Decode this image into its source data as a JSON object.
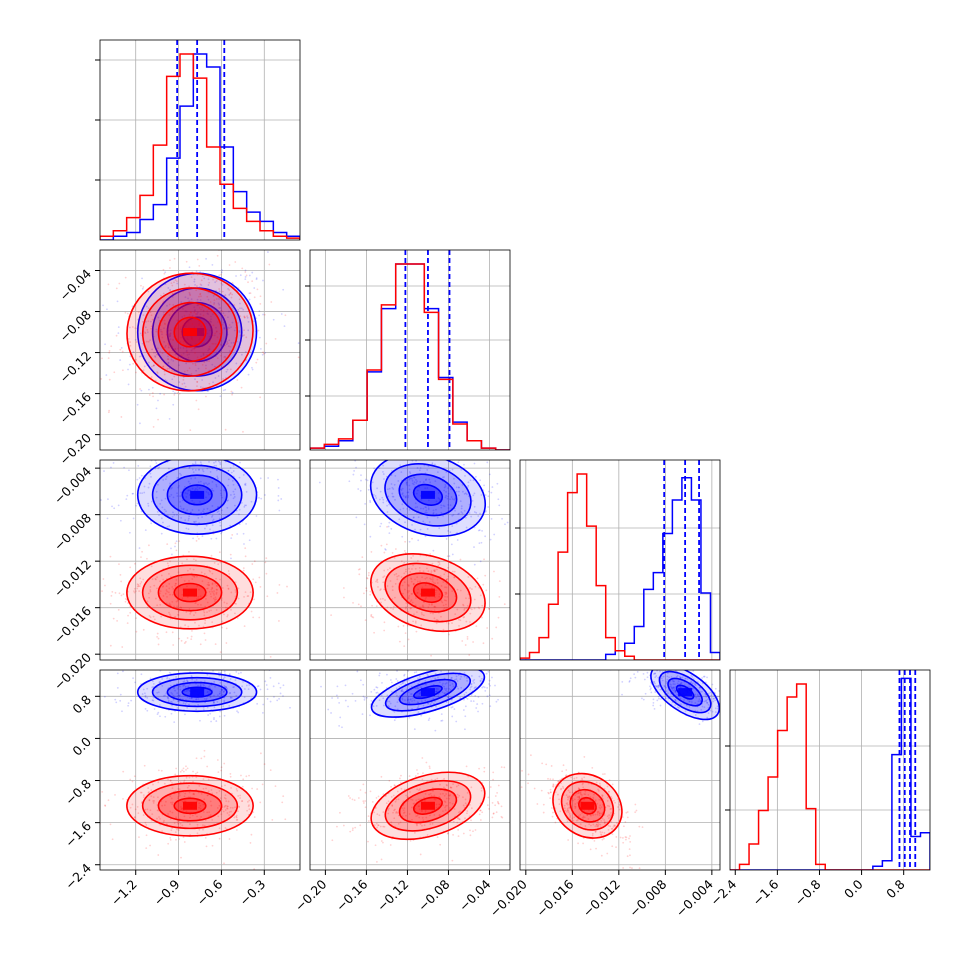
{
  "colors": {
    "series_a": "#0000ff",
    "series_b": "#ff0000",
    "grid": "#b0b0b0",
    "frame": "#000000"
  },
  "chart_data": {
    "type": "corner",
    "parameters": [
      {
        "range": [
          -1.45,
          -0.05
        ],
        "ticks": [
          -1.2,
          -0.9,
          -0.6,
          -0.3
        ],
        "tick_labels": [
          "−1.2",
          "−0.9",
          "−0.6",
          "−0.3"
        ]
      },
      {
        "range": [
          -0.215,
          -0.02
        ],
        "ticks": [
          -0.2,
          -0.16,
          -0.12,
          -0.08,
          -0.04
        ],
        "tick_labels": [
          "−0.20",
          "−0.16",
          "−0.12",
          "−0.08",
          "−0.04"
        ]
      },
      {
        "range": [
          -0.0205,
          -0.0033
        ],
        "ticks": [
          -0.02,
          -0.016,
          -0.012,
          -0.008,
          -0.004
        ],
        "tick_labels": [
          "−0.020",
          "−0.016",
          "−0.012",
          "−0.008",
          "−0.004"
        ]
      },
      {
        "range": [
          -2.5,
          1.3
        ],
        "ticks": [
          -2.4,
          -1.6,
          -0.8,
          0.0,
          0.8
        ],
        "tick_labels": [
          "−2.4",
          "−1.6",
          "−0.8",
          "0.0",
          "0.8"
        ]
      }
    ],
    "diag_yticks": [
      [
        0.3,
        0.6,
        0.9
      ],
      [
        0.27,
        0.55,
        0.82
      ],
      [
        0.33,
        0.66
      ],
      [
        0.3,
        0.62
      ]
    ],
    "series": [
      {
        "color": "#0000ff",
        "means": [
          -0.77,
          -0.1,
          -0.0063,
          0.88
        ],
        "sds": [
          0.16,
          0.022,
          0.0013,
          0.14
        ],
        "quantile_lines": [
          [
            -0.91,
            -0.77,
            -0.58
          ],
          [
            -0.122,
            -0.1,
            -0.079
          ],
          [
            -0.0081,
            -0.0063,
            -0.0051
          ],
          [
            0.72,
            0.82,
            0.92,
            1.02
          ]
        ],
        "histograms": [
          [
            0,
            0.02,
            0.04,
            0.11,
            0.19,
            0.44,
            0.72,
            1.0,
            0.93,
            0.5,
            0.26,
            0.15,
            0.1,
            0.04,
            0.02
          ],
          [
            0.01,
            0.02,
            0.05,
            0.16,
            0.42,
            0.76,
            1.0,
            1.0,
            0.76,
            0.39,
            0.15,
            0.05,
            0.01,
            0.0
          ],
          [
            0,
            0,
            0,
            0,
            0,
            0,
            0,
            0,
            0,
            0.03,
            0.05,
            0.09,
            0.18,
            0.38,
            0.47,
            0.68,
            0.86,
            0.98,
            0.86,
            0.36,
            0.04
          ],
          [
            0,
            0,
            0,
            0,
            0,
            0,
            0,
            0,
            0,
            0,
            0,
            0,
            0,
            0,
            0,
            0.02,
            0.05,
            0.62,
            1.03,
            0.18,
            0.2
          ]
        ]
      },
      {
        "color": "#ff0000",
        "means": [
          -0.82,
          -0.1,
          -0.0147,
          -1.28
        ],
        "sds": [
          0.17,
          0.022,
          0.0012,
          0.22
        ],
        "quantile_lines": [],
        "histograms": [
          [
            0.02,
            0.05,
            0.12,
            0.24,
            0.51,
            0.88,
            1.0,
            0.87,
            0.5,
            0.3,
            0.17,
            0.1,
            0.05,
            0.02,
            0.01
          ],
          [
            0.01,
            0.03,
            0.06,
            0.16,
            0.43,
            0.78,
            1.0,
            1.0,
            0.74,
            0.38,
            0.14,
            0.05,
            0.01,
            0.0
          ],
          [
            0.01,
            0.04,
            0.12,
            0.3,
            0.58,
            0.9,
            1.0,
            0.72,
            0.4,
            0.12,
            0.05,
            0.02,
            0,
            0,
            0,
            0,
            0,
            0,
            0,
            0,
            0
          ],
          [
            0.0,
            0.03,
            0.14,
            0.32,
            0.5,
            0.75,
            0.93,
            1.0,
            0.33,
            0.03,
            0,
            0,
            0,
            0,
            0,
            0,
            0,
            0,
            0,
            0,
            0
          ]
        ]
      }
    ],
    "correlations": {
      "0-1": 0.15,
      "0-2": 0.0,
      "1-2": -0.25,
      "0-3": 0.0,
      "1-3": 0.25,
      "2-3": -0.55
    }
  }
}
